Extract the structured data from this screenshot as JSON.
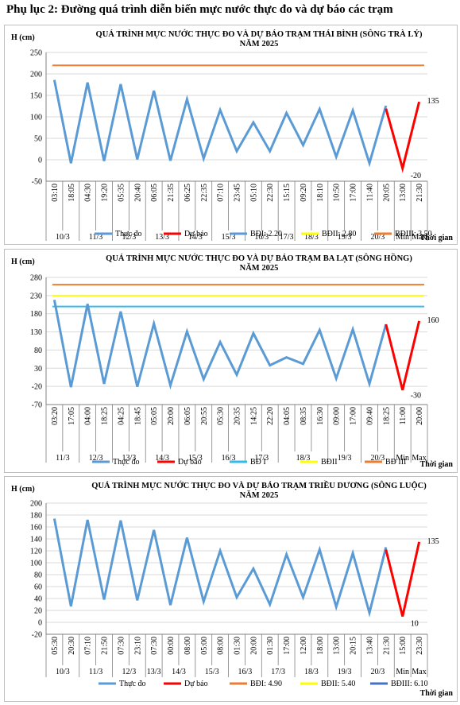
{
  "page_title": "Phụ lục 2: Đường quá trình diễn biến mực nước thực đo và dự báo các trạm",
  "chart_data": [
    {
      "type": "line",
      "title": "QUÁ TRÌNH MỰC NƯỚC THỰC ĐO VÀ DỰ BÁO TRẠM THÁI BÌNH (SÔNG TRÀ LÝ)",
      "subtitle": "NĂM 2025",
      "ylabel": "H (cm)",
      "xlabel": "Thời gian",
      "ylim": [
        -50,
        250
      ],
      "yticks": [
        "250",
        "200",
        "150",
        "100",
        "50",
        "0",
        "-50"
      ],
      "time_labels": [
        "03:10",
        "18:05",
        "04:30",
        "19:20",
        "05:35",
        "20:40",
        "06:05",
        "21:35",
        "06:25",
        "22:35",
        "07:10",
        "23:45",
        "05:10",
        "22:30",
        "15:15",
        "09:20",
        "18:10",
        "10:50",
        "17:00",
        "11:40",
        "20:05",
        "13:00",
        "21:30"
      ],
      "date_groups": [
        {
          "label": "10/3",
          "span": 2
        },
        {
          "label": "11/3",
          "span": 2
        },
        {
          "label": "12/3",
          "span": 2
        },
        {
          "label": "13/3",
          "span": 2
        },
        {
          "label": "14/3",
          "span": 2
        },
        {
          "label": "15/3",
          "span": 2
        },
        {
          "label": "16/3",
          "span": 2
        },
        {
          "label": "17/3",
          "span": 1
        },
        {
          "label": "18/3",
          "span": 2
        },
        {
          "label": "19/3",
          "span": 2
        },
        {
          "label": "20/3",
          "span": 2
        },
        {
          "label": "Min",
          "span": 1
        },
        {
          "label": "Max",
          "span": 1
        }
      ],
      "series": [
        {
          "name": "Thực đo",
          "color": "#5b9bd5",
          "values": [
            186,
            -8,
            180,
            -3,
            176,
            1,
            161,
            -2,
            141,
            3,
            116,
            20,
            87,
            20,
            109,
            34,
            118,
            7,
            115,
            -8,
            126,
            null,
            null
          ]
        },
        {
          "name": "Dự báo",
          "color": "#ff0000",
          "values": [
            null,
            null,
            null,
            null,
            null,
            null,
            null,
            null,
            null,
            null,
            null,
            null,
            null,
            null,
            null,
            null,
            null,
            null,
            null,
            null,
            119,
            -20,
            135
          ]
        }
      ],
      "thresholds": [
        {
          "name": "BĐI: 2.20",
          "color": "#5b9bd5",
          "value": null
        },
        {
          "name": "BĐII: 2.80",
          "color": "#ffff00",
          "value": null
        },
        {
          "name": "BĐIII: 3.50",
          "color": "#ed7d31",
          "value": 220
        }
      ],
      "annotations": [
        {
          "text": "135"
        },
        {
          "text": "-20"
        }
      ]
    },
    {
      "type": "line",
      "title": "QUÁ TRÌNH MỰC NƯỚC THỰC ĐO VÀ DỰ BÁO TRẠM BA LẠT (SÔNG HỒNG)",
      "subtitle": "NĂM 2025",
      "ylabel": "H (cm)",
      "xlabel": "Thời gian",
      "ylim": [
        -70,
        280
      ],
      "yticks": [
        "280",
        "230",
        "180",
        "130",
        "80",
        "30",
        "-20",
        "-70"
      ],
      "time_labels": [
        "03:20",
        "17:05",
        "04:00",
        "18:25",
        "04:25",
        "18:45",
        "05:05",
        "20:00",
        "06:05",
        "20:55",
        "05:30",
        "20:35",
        "14:25",
        "22:20",
        "04:05",
        "08:35",
        "16:30",
        "09:00",
        "17:00",
        "09:40",
        "18:25",
        "11:00",
        "20:00"
      ],
      "date_groups": [
        {
          "label": "11/3",
          "span": 2
        },
        {
          "label": "12/3",
          "span": 2
        },
        {
          "label": "13/3",
          "span": 2
        },
        {
          "label": "14/3",
          "span": 2
        },
        {
          "label": "15/3",
          "span": 2
        },
        {
          "label": "16/3",
          "span": 2
        },
        {
          "label": "17/3",
          "span": 2
        },
        {
          "label": "18/3",
          "span": 3
        },
        {
          "label": "19/3",
          "span": 2
        },
        {
          "label": "20/3",
          "span": 2
        },
        {
          "label": "Min",
          "span": 1
        },
        {
          "label": "Max",
          "span": 1
        }
      ],
      "series": [
        {
          "name": "Thực đo",
          "color": "#5b9bd5",
          "values": [
            218,
            -22,
            207,
            -13,
            186,
            -21,
            153,
            -17,
            131,
            0,
            102,
            12,
            126,
            38,
            60,
            42,
            135,
            2,
            137,
            -13,
            151,
            null,
            null
          ]
        },
        {
          "name": "Dự báo",
          "color": "#ff0000",
          "values": [
            null,
            null,
            null,
            null,
            null,
            null,
            null,
            null,
            null,
            null,
            null,
            null,
            null,
            null,
            null,
            null,
            null,
            null,
            null,
            null,
            151,
            -30,
            160
          ]
        }
      ],
      "thresholds": [
        {
          "name": "BĐ I",
          "color": "#33bbee",
          "value": 200
        },
        {
          "name": "BĐII",
          "color": "#ffff00",
          "value": 230
        },
        {
          "name": "BĐ III",
          "color": "#ed7d31",
          "value": 260
        }
      ],
      "annotations": [
        {
          "text": "160"
        },
        {
          "text": "-30"
        }
      ]
    },
    {
      "type": "line",
      "title": "QUÁ TRÌNH MỰC NƯỚC THỰC ĐO VÀ DỰ BÁO TRẠM TRIỀU DƯƠNG  (SÔNG LUỘC)",
      "subtitle": "NĂM 2025",
      "ylabel": "H (cm)",
      "xlabel": "Thời gian",
      "ylim": [
        -20,
        200
      ],
      "yticks": [
        "200",
        "180",
        "160",
        "140",
        "120",
        "100",
        "80",
        "60",
        "40",
        "20",
        "0",
        "-20"
      ],
      "time_labels": [
        "05:30",
        "20:30",
        "07:10",
        "21:50",
        "07:30",
        "23:10",
        "07:30",
        "00:00",
        "08:00",
        "05:00",
        "08:00",
        "01:30",
        "20:00",
        "01:30",
        "17:00",
        "12:00",
        "18:00",
        "13:00",
        "20:15",
        "13:40",
        "21:30",
        "15:00",
        "23:30"
      ],
      "date_groups": [
        {
          "label": "10/3",
          "span": 2
        },
        {
          "label": "11/3",
          "span": 2
        },
        {
          "label": "12/3",
          "span": 2
        },
        {
          "label": "13/3",
          "span": 1
        },
        {
          "label": "14/3",
          "span": 2
        },
        {
          "label": "15/3",
          "span": 2
        },
        {
          "label": "16/3",
          "span": 2
        },
        {
          "label": "17/3",
          "span": 2
        },
        {
          "label": "18/3",
          "span": 2
        },
        {
          "label": "19/3",
          "span": 2
        },
        {
          "label": "20/3",
          "span": 2
        },
        {
          "label": "Min",
          "span": 1
        },
        {
          "label": "Max",
          "span": 1
        }
      ],
      "series": [
        {
          "name": "Thực đo",
          "color": "#5b9bd5",
          "values": [
            174,
            27,
            172,
            38,
            171,
            37,
            155,
            29,
            142,
            35,
            120,
            42,
            90,
            30,
            114,
            42,
            122,
            26,
            116,
            16,
            126,
            null,
            null
          ]
        },
        {
          "name": "Dự báo",
          "color": "#ff0000",
          "values": [
            null,
            null,
            null,
            null,
            null,
            null,
            null,
            null,
            null,
            null,
            null,
            null,
            null,
            null,
            null,
            null,
            null,
            null,
            null,
            null,
            122,
            10,
            135
          ]
        }
      ],
      "thresholds": [
        {
          "name": "BĐI: 4.90",
          "color": "#ed7d31",
          "value": null
        },
        {
          "name": "BĐII: 5.40",
          "color": "#ffff00",
          "value": null
        },
        {
          "name": "BĐIII: 6.10",
          "color": "#4472c4",
          "value": null
        }
      ],
      "annotations": [
        {
          "text": "135"
        },
        {
          "text": "10"
        }
      ]
    }
  ]
}
